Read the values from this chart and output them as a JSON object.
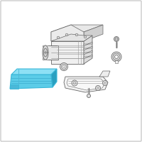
{
  "background_color": "#ffffff",
  "border_color": "#c0c0c0",
  "highlight_color": "#3ab8d8",
  "highlight_fill": "#5bcce8",
  "highlight_top": "#8de0f5",
  "highlight_side": "#2aa0c0",
  "line_color": "#999999",
  "dark_line": "#666666",
  "fig_size": [
    2.0,
    2.0
  ],
  "dpi": 100
}
